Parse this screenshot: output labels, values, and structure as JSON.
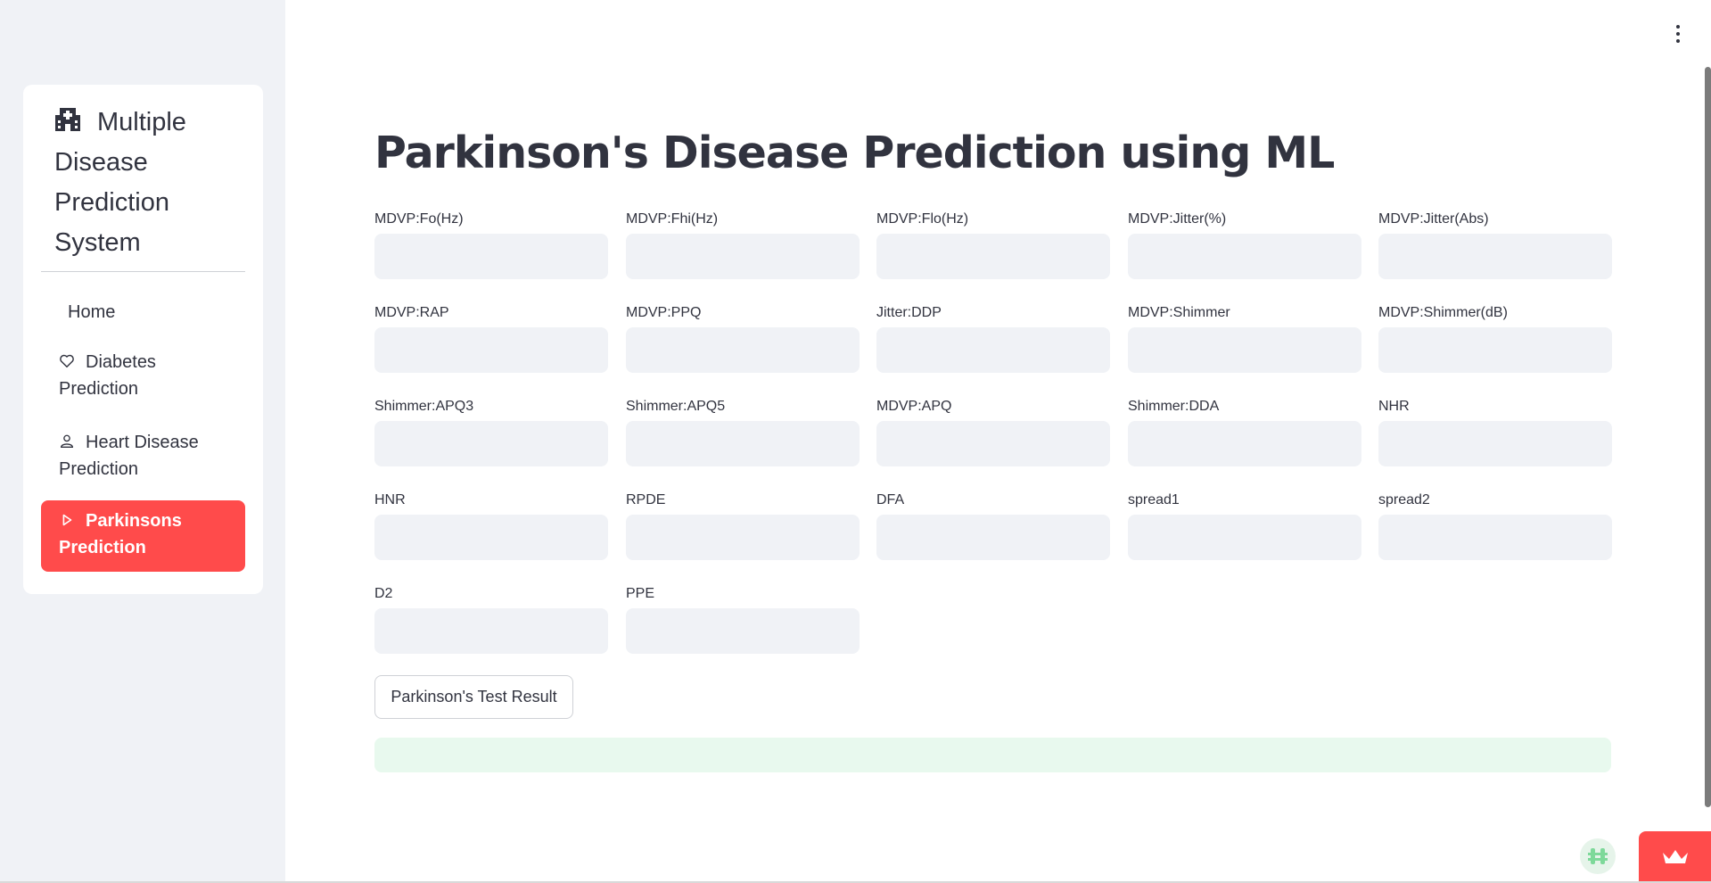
{
  "sidebar": {
    "app_title": "Multiple Disease Prediction System",
    "items": [
      {
        "label": "Home",
        "icon": "none"
      },
      {
        "label": "Diabetes Prediction",
        "icon": "heart-icon"
      },
      {
        "label": "Heart Disease Prediction",
        "icon": "person-icon"
      },
      {
        "label": "Parkinsons Prediction",
        "icon": "play-icon",
        "active": true
      }
    ],
    "accent_color": "#ff4b4b"
  },
  "main": {
    "title": "Parkinson's Disease Prediction using ML",
    "fields": [
      {
        "label": "MDVP:Fo(Hz)",
        "value": ""
      },
      {
        "label": "MDVP:Fhi(Hz)",
        "value": ""
      },
      {
        "label": "MDVP:Flo(Hz)",
        "value": ""
      },
      {
        "label": "MDVP:Jitter(%)",
        "value": ""
      },
      {
        "label": "MDVP:Jitter(Abs)",
        "value": ""
      },
      {
        "label": "MDVP:RAP",
        "value": ""
      },
      {
        "label": "MDVP:PPQ",
        "value": ""
      },
      {
        "label": "Jitter:DDP",
        "value": ""
      },
      {
        "label": "MDVP:Shimmer",
        "value": ""
      },
      {
        "label": "MDVP:Shimmer(dB)",
        "value": ""
      },
      {
        "label": "Shimmer:APQ3",
        "value": ""
      },
      {
        "label": "Shimmer:APQ5",
        "value": ""
      },
      {
        "label": "MDVP:APQ",
        "value": ""
      },
      {
        "label": "Shimmer:DDA",
        "value": ""
      },
      {
        "label": "NHR",
        "value": ""
      },
      {
        "label": "HNR",
        "value": ""
      },
      {
        "label": "RPDE",
        "value": ""
      },
      {
        "label": "DFA",
        "value": ""
      },
      {
        "label": "spread1",
        "value": ""
      },
      {
        "label": "spread2",
        "value": ""
      },
      {
        "label": "D2",
        "value": ""
      },
      {
        "label": "PPE",
        "value": ""
      }
    ],
    "submit_label": "Parkinson's Test Result",
    "result_text": "",
    "result_color": "#e8f9ee"
  }
}
